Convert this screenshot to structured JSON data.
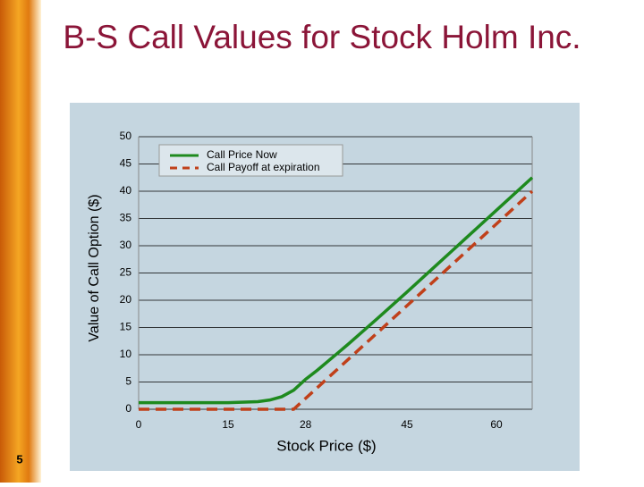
{
  "slide_number": "5",
  "chart_data": {
    "type": "line",
    "title": "B-S Call Values for Stock Holm Inc.",
    "x_label": "Stock Price ($)",
    "y_label": "Value of Call Option ($)",
    "xlim": [
      0,
      66
    ],
    "xticks": [
      0,
      15,
      28,
      45,
      60
    ],
    "ylim": [
      0,
      50
    ],
    "yticks": [
      0,
      5,
      10,
      15,
      20,
      25,
      30,
      35,
      40,
      45,
      50
    ],
    "grid": true,
    "legend": "top",
    "series": [
      {
        "name": "Call Price Now",
        "color": "#1e8a1e",
        "style": "solid",
        "x": [
          0,
          5,
          10,
          15,
          20,
          22,
          24,
          26,
          28,
          30,
          35,
          40,
          45,
          50,
          55,
          60,
          66
        ],
        "values": [
          1.2,
          1.2,
          1.2,
          1.2,
          1.4,
          1.7,
          2.3,
          3.5,
          5.5,
          7.2,
          11.8,
          16.6,
          21.5,
          26.5,
          31.5,
          36.5,
          42.5
        ]
      },
      {
        "name": "Call Payoff at expiration",
        "color": "#c0401a",
        "style": "dashed",
        "x": [
          0,
          26,
          66
        ],
        "values": [
          0,
          0,
          40
        ]
      }
    ]
  }
}
